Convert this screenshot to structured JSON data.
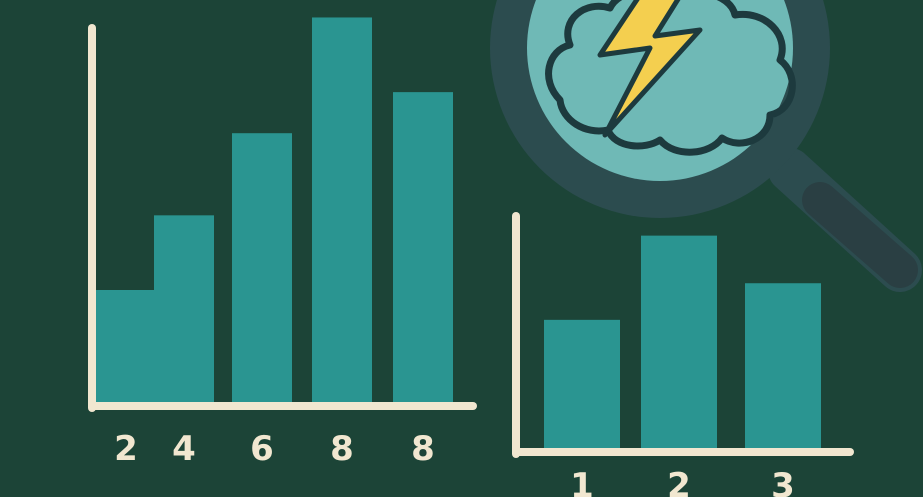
{
  "colors": {
    "background": "#1c4437",
    "bar": "#2a9591",
    "axis": "#f1e7d0",
    "lens": "#6fb9b6",
    "magnifier_frame": "#2c4c4f",
    "bolt": "#f4cf4f",
    "outline": "#1d3a3e"
  },
  "icons": {
    "magnifier": "magnifying-glass-icon",
    "brain": "brain-cloud-icon",
    "bolt": "lightning-bolt-icon"
  },
  "chart_data": [
    {
      "type": "bar",
      "categories": [
        "2",
        "4",
        "6",
        "8",
        "8"
      ],
      "values": [
        3,
        5,
        7.2,
        10.3,
        8.3
      ],
      "ylim": [
        0,
        10.5
      ],
      "grid": false,
      "title": "",
      "xlabel": "",
      "ylabel": ""
    },
    {
      "type": "bar",
      "categories": [
        "1",
        "2",
        "3"
      ],
      "values": [
        3.5,
        5.8,
        4.5
      ],
      "ylim": [
        0,
        6.5
      ],
      "grid": false,
      "title": "",
      "xlabel": "",
      "ylabel": ""
    }
  ]
}
